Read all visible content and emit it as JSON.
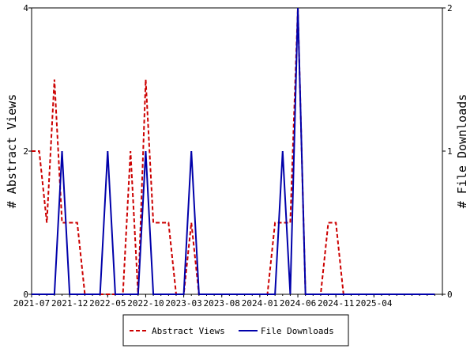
{
  "chart_data": {
    "type": "line",
    "x_tick_labels": [
      "2021-07",
      "2021-12",
      "2022-05",
      "2022-10",
      "2023-03",
      "2023-08",
      "2024-01",
      "2024-06",
      "2024-11",
      "2025-04"
    ],
    "x_range": [
      "2021-07",
      "2026-01"
    ],
    "ylabel_left": "# Abstract Views",
    "ylabel_right": "# File Downloads",
    "ylim_left": [
      0,
      4
    ],
    "ylim_right": [
      0,
      2
    ],
    "yticks_left": [
      "0",
      "2",
      "4"
    ],
    "yticks_right": [
      "0",
      "1",
      "2"
    ],
    "legend_position": "bottom",
    "series": [
      {
        "name": "Abstract Views",
        "axis": "left",
        "color": "#cc0000",
        "dash": "dashed",
        "points": [
          [
            "2021-07",
            2
          ],
          [
            "2021-08",
            2
          ],
          [
            "2021-09",
            1
          ],
          [
            "2021-10",
            3
          ],
          [
            "2021-11",
            1
          ],
          [
            "2021-12",
            1
          ],
          [
            "2022-01",
            1
          ],
          [
            "2022-02",
            0
          ],
          [
            "2022-03",
            0
          ],
          [
            "2022-04",
            0
          ],
          [
            "2022-05",
            0
          ],
          [
            "2022-06",
            0
          ],
          [
            "2022-07",
            0
          ],
          [
            "2022-08",
            2
          ],
          [
            "2022-09",
            0
          ],
          [
            "2022-10",
            3
          ],
          [
            "2022-11",
            1
          ],
          [
            "2022-12",
            1
          ],
          [
            "2023-01",
            1
          ],
          [
            "2023-02",
            0
          ],
          [
            "2023-03",
            0
          ],
          [
            "2023-04",
            1
          ],
          [
            "2023-05",
            0
          ],
          [
            "2023-06",
            0
          ],
          [
            "2023-07",
            0
          ],
          [
            "2023-08",
            0
          ],
          [
            "2023-09",
            0
          ],
          [
            "2023-10",
            0
          ],
          [
            "2023-11",
            0
          ],
          [
            "2023-12",
            0
          ],
          [
            "2024-01",
            0
          ],
          [
            "2024-02",
            0
          ],
          [
            "2024-03",
            1
          ],
          [
            "2024-04",
            1
          ],
          [
            "2024-05",
            1
          ],
          [
            "2024-06",
            4
          ],
          [
            "2024-07",
            0
          ],
          [
            "2024-08",
            0
          ],
          [
            "2024-09",
            0
          ],
          [
            "2024-10",
            1
          ],
          [
            "2024-11",
            1
          ],
          [
            "2024-12",
            0
          ],
          [
            "2025-01",
            0
          ],
          [
            "2025-02",
            0
          ],
          [
            "2025-03",
            0
          ],
          [
            "2025-04",
            0
          ],
          [
            "2025-05",
            0
          ],
          [
            "2025-06",
            0
          ],
          [
            "2025-07",
            0
          ],
          [
            "2025-08",
            0
          ],
          [
            "2025-09",
            0
          ],
          [
            "2025-10",
            0
          ],
          [
            "2025-11",
            0
          ],
          [
            "2025-12",
            0
          ]
        ]
      },
      {
        "name": "File Downloads",
        "axis": "right",
        "color": "#0000aa",
        "dash": "solid",
        "points": [
          [
            "2021-07",
            0
          ],
          [
            "2021-08",
            0
          ],
          [
            "2021-09",
            0
          ],
          [
            "2021-10",
            0
          ],
          [
            "2021-11",
            1
          ],
          [
            "2021-12",
            0
          ],
          [
            "2022-01",
            0
          ],
          [
            "2022-02",
            0
          ],
          [
            "2022-03",
            0
          ],
          [
            "2022-04",
            0
          ],
          [
            "2022-05",
            1
          ],
          [
            "2022-06",
            0
          ],
          [
            "2022-07",
            0
          ],
          [
            "2022-08",
            0
          ],
          [
            "2022-09",
            0
          ],
          [
            "2022-10",
            1
          ],
          [
            "2022-11",
            0
          ],
          [
            "2022-12",
            0
          ],
          [
            "2023-01",
            0
          ],
          [
            "2023-02",
            0
          ],
          [
            "2023-03",
            0
          ],
          [
            "2023-04",
            1
          ],
          [
            "2023-05",
            0
          ],
          [
            "2023-06",
            0
          ],
          [
            "2023-07",
            0
          ],
          [
            "2023-08",
            0
          ],
          [
            "2023-09",
            0
          ],
          [
            "2023-10",
            0
          ],
          [
            "2023-11",
            0
          ],
          [
            "2023-12",
            0
          ],
          [
            "2024-01",
            0
          ],
          [
            "2024-02",
            0
          ],
          [
            "2024-03",
            0
          ],
          [
            "2024-04",
            1
          ],
          [
            "2024-05",
            0
          ],
          [
            "2024-06",
            2
          ],
          [
            "2024-07",
            0
          ],
          [
            "2024-08",
            0
          ],
          [
            "2024-09",
            0
          ],
          [
            "2024-10",
            0
          ],
          [
            "2024-11",
            0
          ],
          [
            "2024-12",
            0
          ],
          [
            "2025-01",
            0
          ],
          [
            "2025-02",
            0
          ],
          [
            "2025-03",
            0
          ],
          [
            "2025-04",
            0
          ],
          [
            "2025-05",
            0
          ],
          [
            "2025-06",
            0
          ],
          [
            "2025-07",
            0
          ],
          [
            "2025-08",
            0
          ],
          [
            "2025-09",
            0
          ],
          [
            "2025-10",
            0
          ],
          [
            "2025-11",
            0
          ],
          [
            "2025-12",
            0
          ]
        ]
      }
    ]
  }
}
